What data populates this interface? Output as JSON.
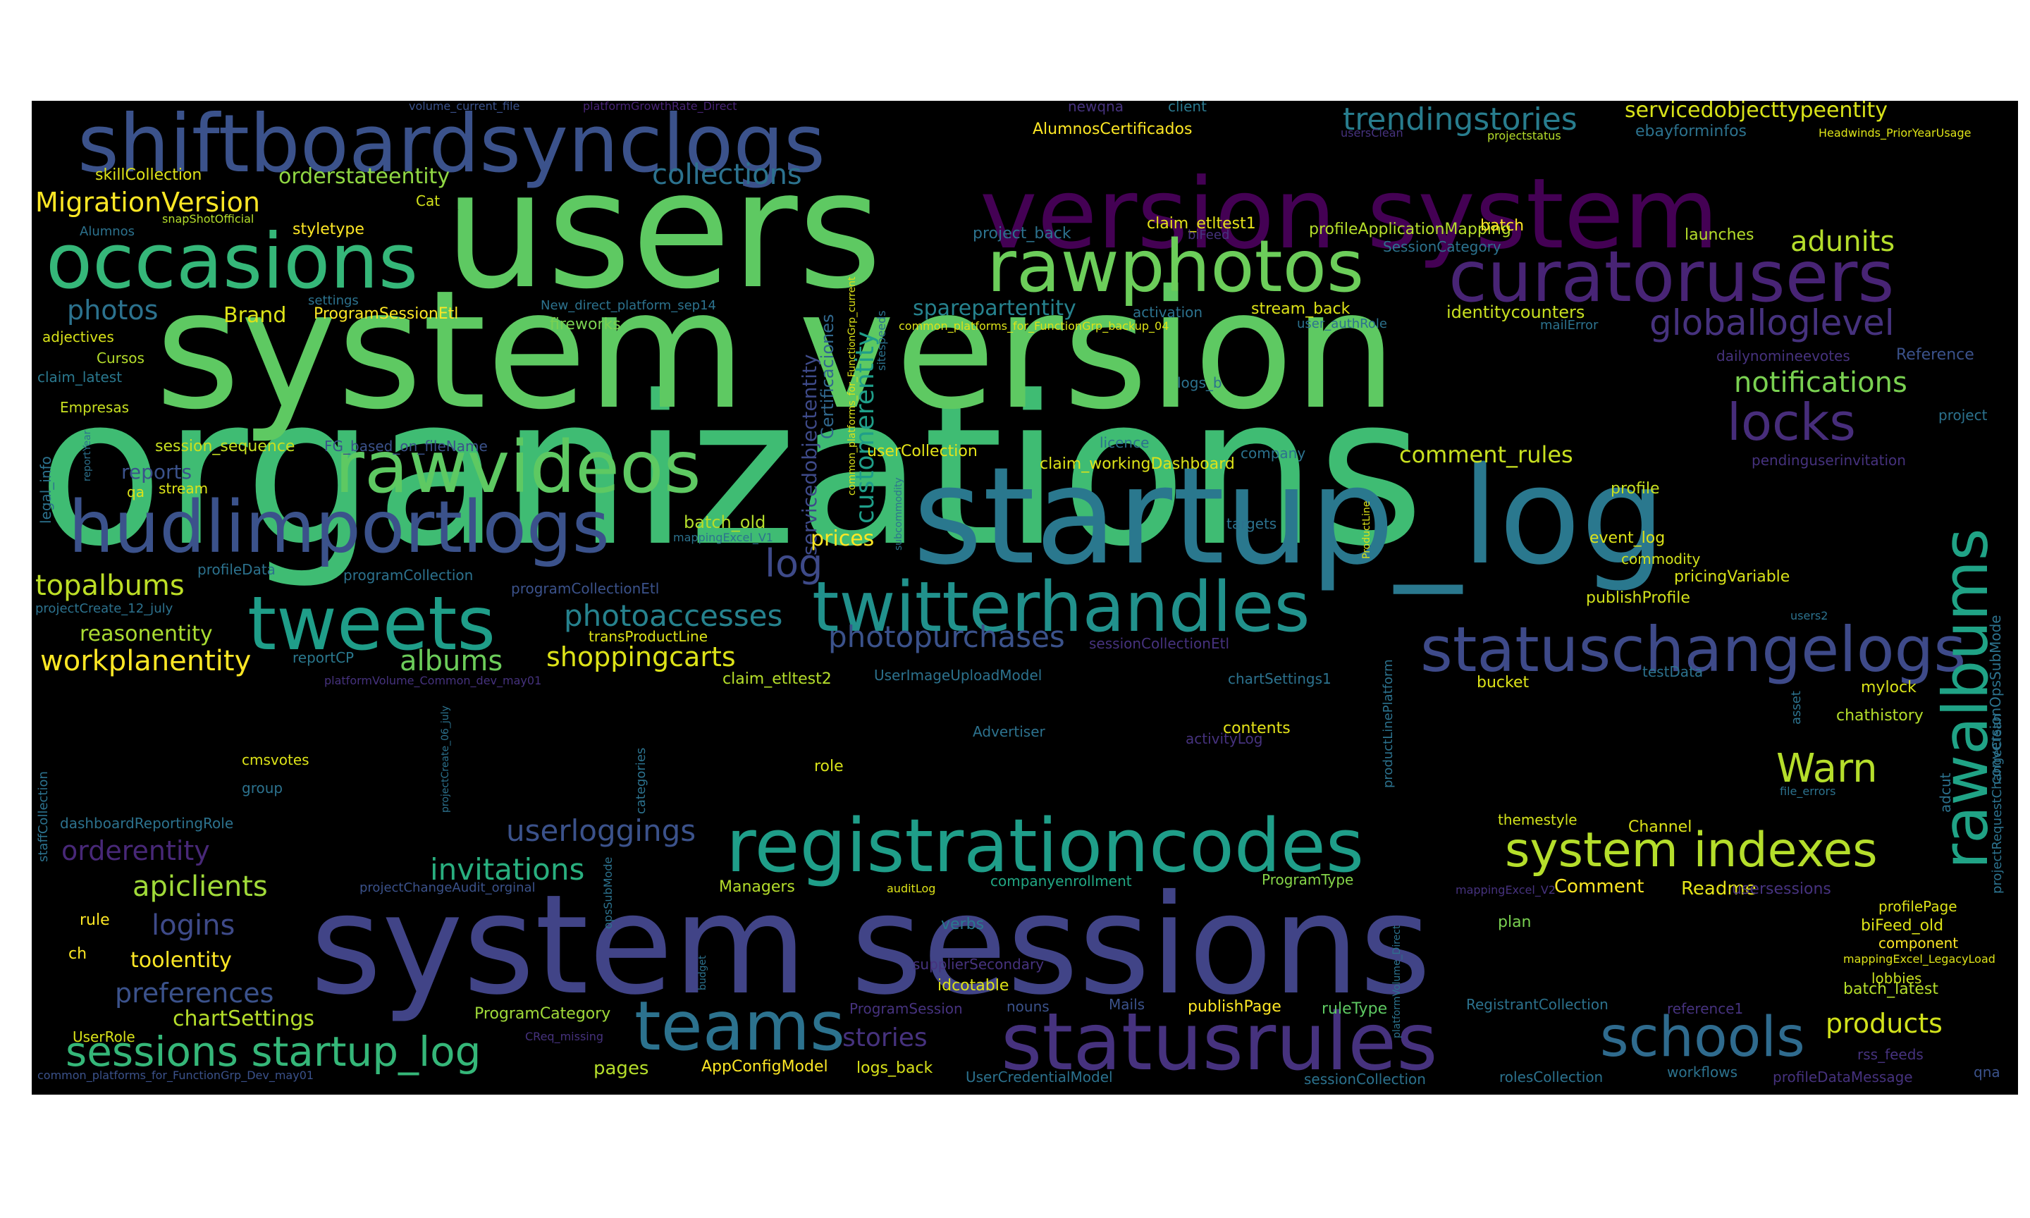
{
  "wordcloud": {
    "words": [
      {
        "text": "organizations",
        "color": "#3fbc73"
      },
      {
        "text": "system version",
        "color": "#5ec962"
      },
      {
        "text": "users",
        "color": "#5ec962"
      },
      {
        "text": "startup_log",
        "color": "#2a788e"
      },
      {
        "text": "system sessions",
        "color": "#414487"
      },
      {
        "text": "version system",
        "color": "#440154"
      },
      {
        "text": "shiftboardsynclogs",
        "color": "#3b528b"
      },
      {
        "text": "statusrules",
        "color": "#46327e"
      },
      {
        "text": "registrationcodes",
        "color": "#1f9e89"
      },
      {
        "text": "hudlimportlogs",
        "color": "#3b528b"
      },
      {
        "text": "twitterhandles",
        "color": "#21918c"
      },
      {
        "text": "rawvideos",
        "color": "#5ec962"
      },
      {
        "text": "occasions",
        "color": "#35b779"
      },
      {
        "text": "rawphotos",
        "color": "#6ccd5a"
      },
      {
        "text": "curatorusers",
        "color": "#482475"
      },
      {
        "text": "tweets",
        "color": "#1f9e89"
      },
      {
        "text": "statuschangelogs",
        "color": "#3e4a89"
      },
      {
        "text": "teams",
        "color": "#2c728e"
      },
      {
        "text": "rawalbums",
        "color": "#20a386"
      },
      {
        "text": "schools",
        "color": "#2f6b8e"
      },
      {
        "text": "system indexes",
        "color": "#b5de2b"
      },
      {
        "text": "sessions startup_log",
        "color": "#35b779"
      },
      {
        "text": "locks",
        "color": "#472d7b"
      },
      {
        "text": "globalloglevel",
        "color": "#46327e"
      },
      {
        "text": "trendingstories",
        "color": "#287d8e"
      },
      {
        "text": "collections",
        "color": "#2c728e"
      },
      {
        "text": "photopurchases",
        "color": "#3b528b"
      },
      {
        "text": "photoaccesses",
        "color": "#26828e"
      },
      {
        "text": "invitations",
        "color": "#29af7f"
      },
      {
        "text": "userloggings",
        "color": "#3b528b"
      },
      {
        "text": "notifications",
        "color": "#7ad151"
      },
      {
        "text": "Warn",
        "color": "#b5de2b"
      },
      {
        "text": "log",
        "color": "#3e4a89"
      },
      {
        "text": "adunits",
        "color": "#b5de2b"
      },
      {
        "text": "shoppingcarts",
        "color": "#dde318"
      },
      {
        "text": "workplanentity",
        "color": "#fde725"
      },
      {
        "text": "topalbums",
        "color": "#bddf26"
      },
      {
        "text": "albums",
        "color": "#6ccd5a"
      },
      {
        "text": "orderentity",
        "color": "#482878"
      },
      {
        "text": "apiclients",
        "color": "#a0da39"
      },
      {
        "text": "logins",
        "color": "#3e4a89"
      },
      {
        "text": "preferences",
        "color": "#3b528b"
      },
      {
        "text": "stories",
        "color": "#46327e"
      },
      {
        "text": "products",
        "color": "#d2e21b"
      },
      {
        "text": "photos",
        "color": "#2c728e"
      },
      {
        "text": "customerentity",
        "color": "#1f9e89"
      },
      {
        "text": "servicedobjectentity",
        "color": "#3e4a89"
      },
      {
        "text": "Certificaciones",
        "color": "#31688e"
      },
      {
        "text": "MigrationVersion",
        "color": "#fde725"
      },
      {
        "text": "comment_rules",
        "color": "#c8e020"
      },
      {
        "text": "servicedobjecttypeentity",
        "color": "#d8e219"
      },
      {
        "text": "sparepartentity",
        "color": "#26828e"
      },
      {
        "text": "orderstateentity",
        "color": "#90d743"
      },
      {
        "text": "reasonentity",
        "color": "#aadc32"
      },
      {
        "text": "toolentity",
        "color": "#fde725"
      },
      {
        "text": "chartSettings",
        "color": "#b5de2b"
      },
      {
        "text": "reports",
        "color": "#3b528b"
      },
      {
        "text": "Brand",
        "color": "#dde318"
      },
      {
        "text": "prices",
        "color": "#fde725"
      },
      {
        "text": "batch_old",
        "color": "#b5de2b"
      },
      {
        "text": "identitycounters",
        "color": "#c8e020"
      },
      {
        "text": "profileApplicationMapping",
        "color": "#b5de2b"
      },
      {
        "text": "claim_etltest1",
        "color": "#e5e419"
      },
      {
        "text": "AlumnosCertificados",
        "color": "#fde725"
      },
      {
        "text": "skillCollection",
        "color": "#dde318"
      },
      {
        "text": "session_sequence",
        "color": "#c8e020"
      },
      {
        "text": "styletype",
        "color": "#fde725"
      },
      {
        "text": "ProgramSessionEtl",
        "color": "#fde725"
      },
      {
        "text": "Comment",
        "color": "#fde725"
      },
      {
        "text": "Readme",
        "color": "#e5e419"
      },
      {
        "text": "AppConfigModel",
        "color": "#fde725"
      },
      {
        "text": "logs_back",
        "color": "#d8e219"
      },
      {
        "text": "pages",
        "color": "#b5de2b"
      },
      {
        "text": "ProgramCategory",
        "color": "#a0da39"
      },
      {
        "text": "publishPage",
        "color": "#fde725"
      },
      {
        "text": "ruleType",
        "color": "#5ec962"
      },
      {
        "text": "event_log",
        "color": "#dde318"
      },
      {
        "text": "commodity",
        "color": "#d2e21b"
      },
      {
        "text": "pricingVariable",
        "color": "#d8e219"
      },
      {
        "text": "publishProfile",
        "color": "#d2e21b"
      },
      {
        "text": "profile",
        "color": "#c8e020"
      },
      {
        "text": "role",
        "color": "#d8e219"
      },
      {
        "text": "contents",
        "color": "#e5e419"
      },
      {
        "text": "Channel",
        "color": "#dde318"
      },
      {
        "text": "themestyle",
        "color": "#d2e21b"
      },
      {
        "text": "batch",
        "color": "#fde725"
      },
      {
        "text": "launches",
        "color": "#b5de2b"
      },
      {
        "text": "stream_back",
        "color": "#dde318"
      },
      {
        "text": "fireworks",
        "color": "#7ad151"
      },
      {
        "text": "claim_workingDashboard",
        "color": "#dde318"
      },
      {
        "text": "userCollection",
        "color": "#e5e419"
      },
      {
        "text": "Managers",
        "color": "#b5de2b"
      },
      {
        "text": "companyenrollment",
        "color": "#22a884"
      },
      {
        "text": "ProgramType",
        "color": "#86d549"
      },
      {
        "text": "biFeed_old",
        "color": "#dde318"
      },
      {
        "text": "batch_latest",
        "color": "#b5de2b"
      },
      {
        "text": "profilePage",
        "color": "#dde318"
      },
      {
        "text": "lobbies",
        "color": "#c8e020"
      },
      {
        "text": "component",
        "color": "#fde725"
      },
      {
        "text": "mylock",
        "color": "#d8e219"
      },
      {
        "text": "chathistory",
        "color": "#b5de2b"
      },
      {
        "text": "bucket",
        "color": "#dde318"
      },
      {
        "text": "plan",
        "color": "#7ad151"
      },
      {
        "text": "rule",
        "color": "#fde725"
      },
      {
        "text": "ch",
        "color": "#fde725"
      },
      {
        "text": "UserRole",
        "color": "#d8e219"
      },
      {
        "text": "adjectives",
        "color": "#d8e219"
      },
      {
        "text": "Cursos",
        "color": "#b5de2b"
      },
      {
        "text": "Empresas",
        "color": "#c8e020"
      },
      {
        "text": "stream",
        "color": "#dde318"
      },
      {
        "text": "qa",
        "color": "#dde318"
      },
      {
        "text": "Alumnos",
        "color": "#2c728e"
      },
      {
        "text": "snapShotOfficial",
        "color": "#b5de2b"
      },
      {
        "text": "claim_latest",
        "color": "#2a788e"
      },
      {
        "text": "settings",
        "color": "#2c728e"
      },
      {
        "text": "Cat",
        "color": "#d2e21b"
      },
      {
        "text": "FG_based_on_fileName",
        "color": "#3b528b"
      },
      {
        "text": "profileData",
        "color": "#2c728e"
      },
      {
        "text": "programCollection",
        "color": "#2c728e"
      },
      {
        "text": "programCollectionEtl",
        "color": "#3b528b"
      },
      {
        "text": "projectCreate_12_july",
        "color": "#2c728e"
      },
      {
        "text": "reportCP",
        "color": "#2a788e"
      },
      {
        "text": "platformVolume_Common_dev_may01",
        "color": "#46327e"
      },
      {
        "text": "transProductLine",
        "color": "#dde318"
      },
      {
        "text": "claim_etltest2",
        "color": "#b5de2b"
      },
      {
        "text": "UserImageUploadModel",
        "color": "#2c728e"
      },
      {
        "text": "sessionCollectionEtl",
        "color": "#46327e"
      },
      {
        "text": "chartSettings1",
        "color": "#2c728e"
      },
      {
        "text": "Advertiser",
        "color": "#2c728e"
      },
      {
        "text": "activityLog",
        "color": "#46327e"
      },
      {
        "text": "testData",
        "color": "#2c728e"
      },
      {
        "text": "users2",
        "color": "#2c728e"
      },
      {
        "text": "file_errors",
        "color": "#2c728e"
      },
      {
        "text": "cmsvotes",
        "color": "#dde318"
      },
      {
        "text": "group",
        "color": "#2c728e"
      },
      {
        "text": "dashboardReportingRole",
        "color": "#2c728e"
      },
      {
        "text": "projectChangeAudit_orginal",
        "color": "#3b528b"
      },
      {
        "text": "auditLog",
        "color": "#dde318"
      },
      {
        "text": "mappingExcel_V2",
        "color": "#46327e"
      },
      {
        "text": "usersessions",
        "color": "#46327e"
      },
      {
        "text": "mappingExcel_LegacyLoad",
        "color": "#dde318"
      },
      {
        "text": "supplierSecondary",
        "color": "#46327e"
      },
      {
        "text": "idcotable",
        "color": "#dde318"
      },
      {
        "text": "verbs",
        "color": "#2a788e"
      },
      {
        "text": "nouns",
        "color": "#3b528b"
      },
      {
        "text": "Mails",
        "color": "#3b528b"
      },
      {
        "text": "ProgramSession",
        "color": "#46327e"
      },
      {
        "text": "CReq_missing",
        "color": "#46327e"
      },
      {
        "text": "common_platforms_for_FunctionGrp_Dev_may01",
        "color": "#3b528b"
      },
      {
        "text": "UserCredentialModel",
        "color": "#2c728e"
      },
      {
        "text": "sessionCollection",
        "color": "#2c728e"
      },
      {
        "text": "rolesCollection",
        "color": "#2c728e"
      },
      {
        "text": "RegistrantCollection",
        "color": "#2c728e"
      },
      {
        "text": "reference1",
        "color": "#46327e"
      },
      {
        "text": "workflows",
        "color": "#2c728e"
      },
      {
        "text": "profileDataMessage",
        "color": "#46327e"
      },
      {
        "text": "rss_feeds",
        "color": "#46327e"
      },
      {
        "text": "qna",
        "color": "#3b528b"
      },
      {
        "text": "volume_current_file",
        "color": "#3b528b"
      },
      {
        "text": "platformGrowthRate_Direct",
        "color": "#482475"
      },
      {
        "text": "newqna",
        "color": "#46327e"
      },
      {
        "text": "client",
        "color": "#2a788e"
      },
      {
        "text": "usersClean",
        "color": "#46327e"
      },
      {
        "text": "projectstatus",
        "color": "#b5de2b"
      },
      {
        "text": "ebayforminfos",
        "color": "#2c728e"
      },
      {
        "text": "Headwinds_PriorYearUsage",
        "color": "#dde318"
      },
      {
        "text": "project_back",
        "color": "#2c728e"
      },
      {
        "text": "SessionCategory",
        "color": "#2c728e"
      },
      {
        "text": "activation",
        "color": "#2c728e"
      },
      {
        "text": "common_platforms_for_FunctionGrp_backup_04",
        "color": "#dde318"
      },
      {
        "text": "user_authRole",
        "color": "#2c728e"
      },
      {
        "text": "mailError",
        "color": "#2c728e"
      },
      {
        "text": "dailynomineevotes",
        "color": "#46327e"
      },
      {
        "text": "Reference",
        "color": "#3b528b"
      },
      {
        "text": "project",
        "color": "#2c728e"
      },
      {
        "text": "New_direct_platform_sep14",
        "color": "#2c728e"
      },
      {
        "text": "logs_b",
        "color": "#2c728e"
      },
      {
        "text": "licence",
        "color": "#2c728e"
      },
      {
        "text": "company",
        "color": "#2c728e"
      },
      {
        "text": "targets",
        "color": "#2c728e"
      },
      {
        "text": "pendinguserinvitation",
        "color": "#46327e"
      },
      {
        "text": "legal_info",
        "color": "#2c728e"
      },
      {
        "text": "reportYear",
        "color": "#2c728e"
      },
      {
        "text": "mappingExcel_V1",
        "color": "#2c728e"
      },
      {
        "text": "common_platforms_for_FunctionGrp_current",
        "color": "#dde318"
      },
      {
        "text": "sitespeeds",
        "color": "#2c728e"
      },
      {
        "text": "subcommodity",
        "color": "#2c728e"
      },
      {
        "text": "ProductLine",
        "color": "#dde318"
      },
      {
        "text": "productLinePlatform",
        "color": "#2c728e"
      },
      {
        "text": "categories",
        "color": "#2c728e"
      },
      {
        "text": "projectCreate_06_july",
        "color": "#2c728e"
      },
      {
        "text": "staffCollection",
        "color": "#2c728e"
      },
      {
        "text": "opsSubMode",
        "color": "#2c728e"
      },
      {
        "text": "budget",
        "color": "#2c728e"
      },
      {
        "text": "platformVolume_Direct",
        "color": "#2c728e"
      },
      {
        "text": "asset",
        "color": "#2c728e"
      },
      {
        "text": "adcut",
        "color": "#2c728e"
      },
      {
        "text": "conversionOpsSubMode",
        "color": "#2c728e"
      },
      {
        "text": "projectRequestChangeClean",
        "color": "#2c728e"
      },
      {
        "text": "biFeed",
        "color": "#46327e"
      },
      {
        "text": "usersClean",
        "color": "#2c728e"
      }
    ]
  }
}
